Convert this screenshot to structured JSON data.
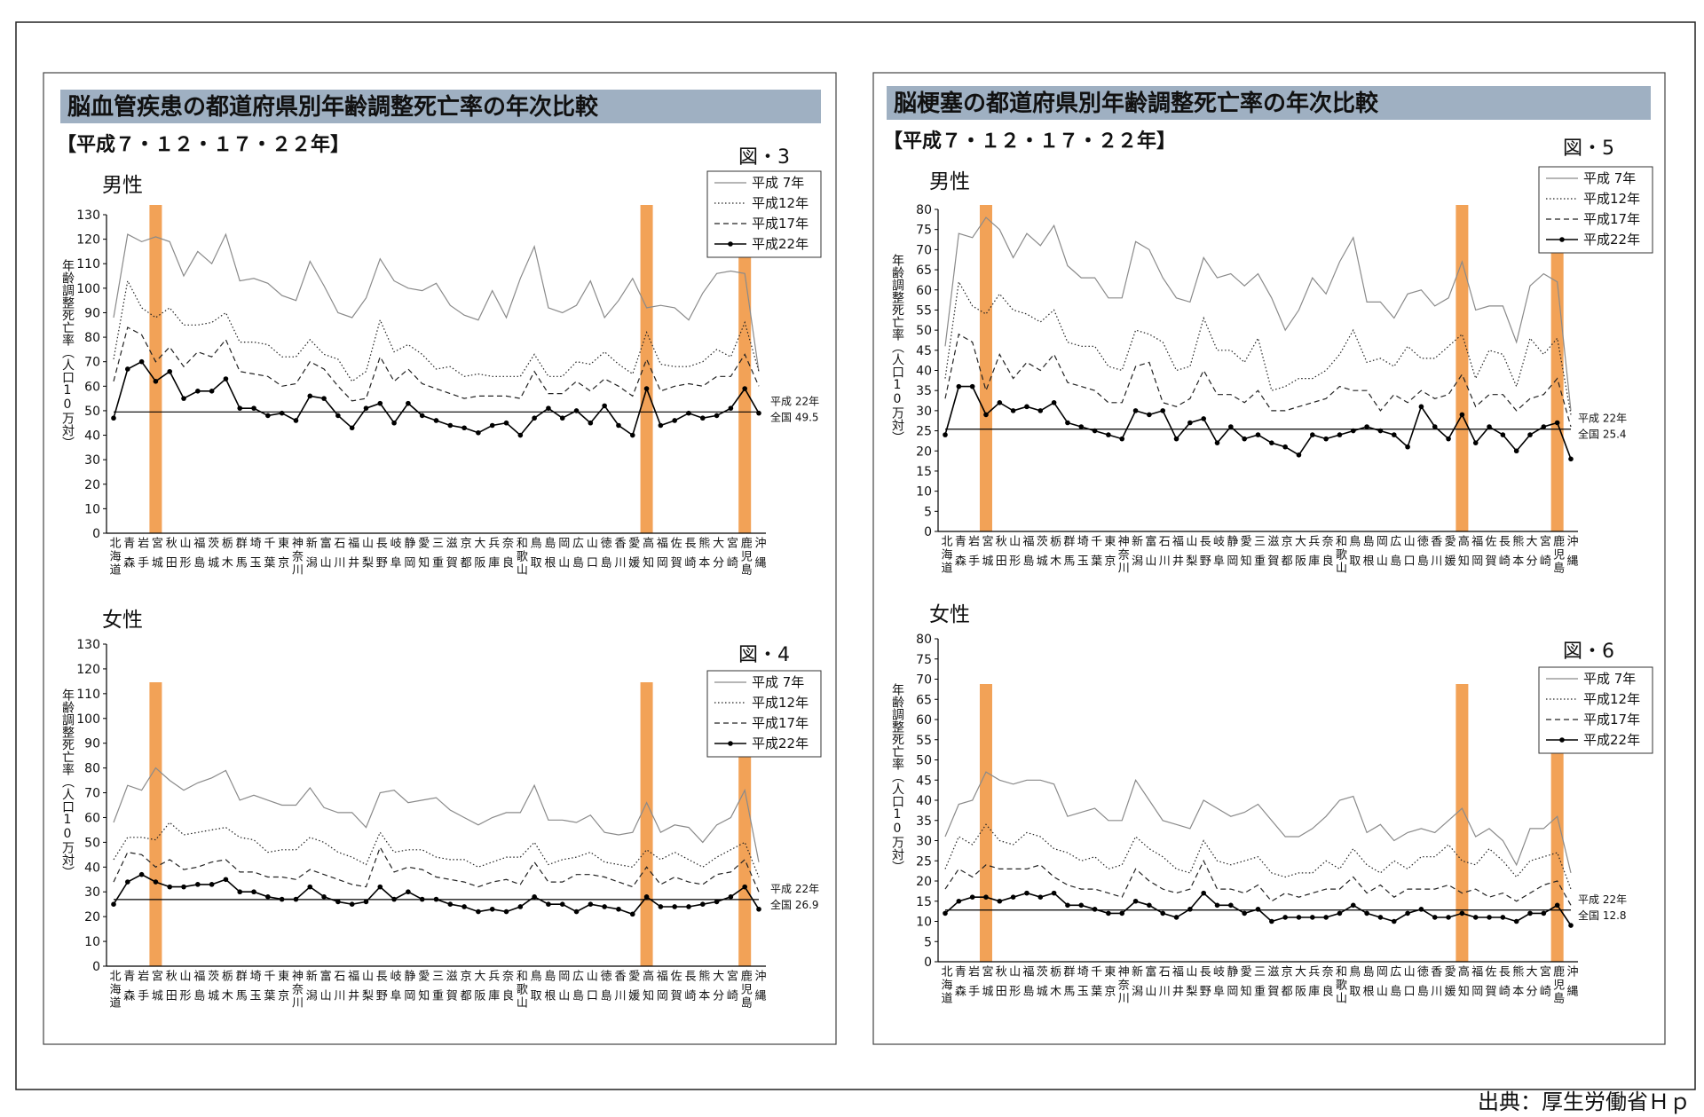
{
  "panels": [
    {
      "title": "脳血管疾患の都道府県別年齢調整死亡率の年次比較",
      "subtitle": "【平成７・１２・１７・２２年】"
    },
    {
      "title": "脳梗塞の都道府県別年齢調整死亡率の年次比較",
      "subtitle": "【平成７・１２・１７・２２年】"
    }
  ],
  "source": "出典：厚生労働省Ｈｐ",
  "chart_data": [
    {
      "type": "line",
      "title": "男性",
      "figure_label": "図・3",
      "y_label": "年齢調整死亡率（人口10万対）",
      "categories": [
        "北海道",
        "青森",
        "岩手",
        "宮城",
        "秋田",
        "山形",
        "福島",
        "茨城",
        "栃木",
        "群馬",
        "埼玉",
        "千葉",
        "東京",
        "神奈川",
        "新潟",
        "富山",
        "石川",
        "福井",
        "山梨",
        "長野",
        "岐阜",
        "静岡",
        "愛知",
        "三重",
        "滋賀",
        "京都",
        "大阪",
        "兵庫",
        "奈良",
        "和歌山",
        "鳥取",
        "島根",
        "岡山",
        "広島",
        "山口",
        "徳島",
        "香川",
        "愛媛",
        "高知",
        "福岡",
        "佐賀",
        "長崎",
        "熊本",
        "大分",
        "宮崎",
        "鹿児島",
        "沖縄"
      ],
      "highlight_indices": [
        3,
        38,
        45
      ],
      "highlight_color": "#f0923a",
      "ylim": [
        0,
        130
      ],
      "yticks": [
        0,
        10,
        20,
        30,
        40,
        50,
        60,
        70,
        80,
        90,
        100,
        110,
        120,
        130
      ],
      "reference": {
        "label": "平成 22年",
        "value": 49.5,
        "value_label": "全国 49.5"
      },
      "series": [
        {
          "name": "平成 7年",
          "color": "#8a8a8a",
          "style": "solid",
          "values": [
            88,
            122,
            119,
            121,
            119,
            105,
            115,
            110,
            122,
            103,
            104,
            102,
            97,
            95,
            111,
            101,
            90,
            88,
            96,
            112,
            103,
            100,
            99,
            102,
            93,
            89,
            87,
            99,
            88,
            104,
            117,
            92,
            90,
            93,
            103,
            88,
            95,
            104,
            92,
            93,
            92,
            87,
            98,
            106,
            107,
            106,
            66
          ]
        },
        {
          "name": "平成12年",
          "color": "#222222",
          "style": "dotted",
          "values": [
            71,
            103,
            92,
            88,
            92,
            85,
            85,
            86,
            90,
            78,
            78,
            77,
            72,
            72,
            79,
            73,
            71,
            62,
            66,
            87,
            74,
            77,
            73,
            67,
            68,
            64,
            65,
            64,
            64,
            64,
            73,
            64,
            64,
            70,
            69,
            74,
            69,
            65,
            82,
            69,
            68,
            68,
            70,
            75,
            72,
            86,
            66
          ]
        },
        {
          "name": "平成17年",
          "color": "#222222",
          "style": "dashed",
          "values": [
            62,
            84,
            81,
            70,
            76,
            68,
            74,
            72,
            79,
            66,
            65,
            64,
            60,
            61,
            70,
            67,
            60,
            54,
            55,
            72,
            62,
            67,
            61,
            59,
            57,
            55,
            56,
            56,
            56,
            55,
            66,
            57,
            57,
            62,
            58,
            63,
            60,
            56,
            71,
            58,
            60,
            61,
            60,
            64,
            64,
            73,
            60
          ]
        },
        {
          "name": "平成22年",
          "color": "#000000",
          "style": "solid",
          "marker": true,
          "values": [
            47,
            67,
            70,
            62,
            66,
            55,
            58,
            58,
            63,
            51,
            51,
            48,
            49,
            46,
            56,
            55,
            48,
            43,
            51,
            53,
            45,
            53,
            48,
            46,
            44,
            43,
            41,
            44,
            45,
            40,
            47,
            51,
            47,
            50,
            45,
            52,
            44,
            40,
            59,
            44,
            46,
            49,
            47,
            48,
            51,
            59,
            49
          ]
        }
      ]
    },
    {
      "type": "line",
      "title": "女性",
      "figure_label": "図・4",
      "y_label": "年齢調整死亡率（人口10万対）",
      "categories": [
        "北海道",
        "青森",
        "岩手",
        "宮城",
        "秋田",
        "山形",
        "福島",
        "茨城",
        "栃木",
        "群馬",
        "埼玉",
        "千葉",
        "東京",
        "神奈川",
        "新潟",
        "富山",
        "石川",
        "福井",
        "山梨",
        "長野",
        "岐阜",
        "静岡",
        "愛知",
        "三重",
        "滋賀",
        "京都",
        "大阪",
        "兵庫",
        "奈良",
        "和歌山",
        "鳥取",
        "島根",
        "岡山",
        "広島",
        "山口",
        "徳島",
        "香川",
        "愛媛",
        "高知",
        "福岡",
        "佐賀",
        "長崎",
        "熊本",
        "大分",
        "宮崎",
        "鹿児島",
        "沖縄"
      ],
      "highlight_indices": [
        3,
        38,
        45
      ],
      "highlight_color": "#f0923a",
      "ylim": [
        0,
        130
      ],
      "yticks": [
        0,
        10,
        20,
        30,
        40,
        50,
        60,
        70,
        80,
        90,
        100,
        110,
        120,
        130
      ],
      "reference": {
        "label": "平成 22年",
        "value": 26.9,
        "value_label": "全国 26.9"
      },
      "series": [
        {
          "name": "平成 7年",
          "color": "#8a8a8a",
          "style": "solid",
          "values": [
            58,
            73,
            71,
            80,
            75,
            71,
            74,
            76,
            79,
            67,
            69,
            67,
            65,
            65,
            72,
            64,
            62,
            62,
            56,
            70,
            71,
            66,
            67,
            68,
            63,
            60,
            57,
            60,
            62,
            62,
            73,
            59,
            59,
            58,
            61,
            54,
            53,
            54,
            66,
            54,
            57,
            56,
            50,
            57,
            60,
            71,
            42
          ]
        },
        {
          "name": "平成12年",
          "color": "#222222",
          "style": "dotted",
          "values": [
            43,
            52,
            52,
            51,
            58,
            53,
            54,
            55,
            56,
            52,
            51,
            46,
            47,
            47,
            52,
            50,
            46,
            44,
            41,
            54,
            46,
            47,
            47,
            44,
            43,
            43,
            40,
            42,
            44,
            44,
            50,
            41,
            43,
            44,
            46,
            42,
            41,
            40,
            47,
            43,
            46,
            43,
            40,
            44,
            47,
            50,
            36
          ]
        },
        {
          "name": "平成17年",
          "color": "#222222",
          "style": "dashed",
          "values": [
            34,
            46,
            45,
            40,
            43,
            39,
            40,
            42,
            43,
            38,
            38,
            36,
            36,
            35,
            39,
            37,
            35,
            33,
            32,
            48,
            38,
            40,
            39,
            36,
            35,
            34,
            32,
            34,
            35,
            33,
            42,
            34,
            34,
            37,
            37,
            36,
            34,
            32,
            40,
            33,
            36,
            34,
            33,
            37,
            38,
            43,
            30
          ]
        },
        {
          "name": "平成22年",
          "color": "#000000",
          "style": "solid",
          "marker": true,
          "values": [
            25,
            34,
            37,
            34,
            32,
            32,
            33,
            33,
            35,
            30,
            30,
            28,
            27,
            27,
            32,
            28,
            26,
            25,
            26,
            32,
            27,
            30,
            27,
            27,
            25,
            24,
            22,
            23,
            22,
            24,
            28,
            25,
            25,
            22,
            25,
            24,
            23,
            21,
            28,
            24,
            24,
            24,
            25,
            26,
            28,
            32,
            23
          ]
        }
      ]
    },
    {
      "type": "line",
      "title": "男性",
      "figure_label": "図・5",
      "y_label": "年齢調整死亡率（人口10万対）",
      "categories": [
        "北海道",
        "青森",
        "岩手",
        "宮城",
        "秋田",
        "山形",
        "福島",
        "茨城",
        "栃木",
        "群馬",
        "埼玉",
        "千葉",
        "東京",
        "神奈川",
        "新潟",
        "富山",
        "石川",
        "福井",
        "山梨",
        "長野",
        "岐阜",
        "静岡",
        "愛知",
        "三重",
        "滋賀",
        "京都",
        "大阪",
        "兵庫",
        "奈良",
        "和歌山",
        "鳥取",
        "島根",
        "岡山",
        "広島",
        "山口",
        "徳島",
        "香川",
        "愛媛",
        "高知",
        "福岡",
        "佐賀",
        "長崎",
        "熊本",
        "大分",
        "宮崎",
        "鹿児島",
        "沖縄"
      ],
      "highlight_indices": [
        3,
        38,
        45
      ],
      "highlight_color": "#f0923a",
      "ylim": [
        0,
        80
      ],
      "yticks": [
        0,
        5,
        10,
        15,
        20,
        25,
        30,
        35,
        40,
        45,
        50,
        55,
        60,
        65,
        70,
        75,
        80
      ],
      "reference": {
        "label": "平成 22年",
        "value": 25.4,
        "value_label": "全国 25.4"
      },
      "series": [
        {
          "name": "平成 7年",
          "color": "#8a8a8a",
          "style": "solid",
          "values": [
            46,
            74,
            73,
            78,
            75,
            68,
            74,
            71,
            76,
            66,
            63,
            63,
            58,
            58,
            72,
            70,
            63,
            58,
            57,
            68,
            63,
            64,
            61,
            64,
            58,
            50,
            55,
            63,
            59,
            67,
            73,
            57,
            57,
            53,
            59,
            60,
            56,
            58,
            67,
            55,
            56,
            56,
            47,
            61,
            64,
            62,
            30
          ]
        },
        {
          "name": "平成12年",
          "color": "#222222",
          "style": "dotted",
          "values": [
            38,
            62,
            56,
            54,
            59,
            55,
            54,
            52,
            55,
            47,
            46,
            46,
            41,
            40,
            50,
            49,
            47,
            40,
            41,
            53,
            45,
            45,
            42,
            48,
            35,
            36,
            38,
            38,
            40,
            44,
            50,
            42,
            43,
            41,
            46,
            43,
            43,
            46,
            49,
            38,
            45,
            44,
            36,
            48,
            44,
            48,
            29
          ]
        },
        {
          "name": "平成17年",
          "color": "#222222",
          "style": "dashed",
          "values": [
            33,
            49,
            47,
            35,
            44,
            38,
            42,
            40,
            44,
            37,
            36,
            35,
            32,
            32,
            41,
            42,
            32,
            31,
            33,
            40,
            34,
            34,
            32,
            35,
            30,
            30,
            31,
            32,
            33,
            36,
            35,
            35,
            30,
            34,
            32,
            35,
            33,
            34,
            39,
            31,
            34,
            34,
            30,
            33,
            34,
            38,
            26
          ]
        },
        {
          "name": "平成22年",
          "color": "#000000",
          "style": "solid",
          "marker": true,
          "values": [
            24,
            36,
            36,
            29,
            32,
            30,
            31,
            30,
            32,
            27,
            26,
            25,
            24,
            23,
            30,
            29,
            30,
            23,
            27,
            28,
            22,
            26,
            23,
            24,
            22,
            21,
            19,
            24,
            23,
            24,
            25,
            26,
            25,
            24,
            21,
            31,
            26,
            23,
            29,
            22,
            26,
            24,
            20,
            24,
            26,
            27,
            18
          ]
        }
      ]
    },
    {
      "type": "line",
      "title": "女性",
      "figure_label": "図・6",
      "y_label": "年齢調整死亡率（人口10万対）",
      "categories": [
        "北海道",
        "青森",
        "岩手",
        "宮城",
        "秋田",
        "山形",
        "福島",
        "茨城",
        "栃木",
        "群馬",
        "埼玉",
        "千葉",
        "東京",
        "神奈川",
        "新潟",
        "富山",
        "石川",
        "福井",
        "山梨",
        "長野",
        "岐阜",
        "静岡",
        "愛知",
        "三重",
        "滋賀",
        "京都",
        "大阪",
        "兵庫",
        "奈良",
        "和歌山",
        "鳥取",
        "島根",
        "岡山",
        "広島",
        "山口",
        "徳島",
        "香川",
        "愛媛",
        "高知",
        "福岡",
        "佐賀",
        "長崎",
        "熊本",
        "大分",
        "宮崎",
        "鹿児島",
        "沖縄"
      ],
      "highlight_indices": [
        3,
        38,
        45
      ],
      "highlight_color": "#f0923a",
      "ylim": [
        0,
        80
      ],
      "yticks": [
        0,
        5,
        10,
        15,
        20,
        25,
        30,
        35,
        40,
        45,
        50,
        55,
        60,
        65,
        70,
        75,
        80
      ],
      "reference": {
        "label": "平成 22年",
        "value": 12.8,
        "value_label": "全国 12.8"
      },
      "series": [
        {
          "name": "平成 7年",
          "color": "#8a8a8a",
          "style": "solid",
          "values": [
            31,
            39,
            40,
            47,
            45,
            44,
            45,
            45,
            44,
            36,
            37,
            38,
            35,
            35,
            45,
            40,
            35,
            34,
            33,
            40,
            38,
            36,
            37,
            39,
            35,
            31,
            31,
            33,
            36,
            40,
            41,
            32,
            34,
            30,
            32,
            33,
            32,
            35,
            38,
            31,
            33,
            30,
            24,
            33,
            33,
            36,
            22
          ]
        },
        {
          "name": "平成12年",
          "color": "#222222",
          "style": "dotted",
          "values": [
            23,
            31,
            29,
            34,
            30,
            29,
            32,
            31,
            28,
            27,
            25,
            26,
            23,
            24,
            31,
            28,
            26,
            23,
            22,
            30,
            25,
            24,
            25,
            26,
            22,
            21,
            22,
            22,
            25,
            23,
            28,
            24,
            22,
            25,
            23,
            26,
            26,
            29,
            25,
            24,
            28,
            25,
            21,
            25,
            26,
            27,
            18
          ]
        },
        {
          "name": "平成17年",
          "color": "#222222",
          "style": "dashed",
          "values": [
            18,
            23,
            21,
            24,
            23,
            23,
            23,
            24,
            21,
            19,
            18,
            18,
            17,
            16,
            23,
            20,
            18,
            17,
            18,
            25,
            18,
            18,
            17,
            19,
            15,
            17,
            16,
            17,
            18,
            18,
            21,
            17,
            19,
            16,
            18,
            18,
            18,
            19,
            17,
            18,
            16,
            17,
            15,
            17,
            19,
            20,
            14
          ]
        },
        {
          "name": "平成22年",
          "color": "#000000",
          "style": "solid",
          "marker": true,
          "values": [
            12,
            15,
            16,
            16,
            15,
            16,
            17,
            16,
            17,
            14,
            14,
            13,
            12,
            12,
            15,
            14,
            12,
            11,
            13,
            17,
            14,
            14,
            12,
            13,
            10,
            11,
            11,
            11,
            11,
            12,
            14,
            12,
            11,
            10,
            12,
            13,
            11,
            11,
            12,
            11,
            11,
            11,
            10,
            12,
            12,
            14,
            9
          ]
        }
      ]
    }
  ]
}
